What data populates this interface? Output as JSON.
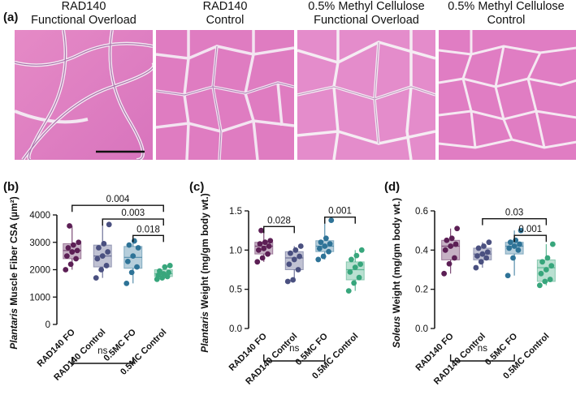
{
  "panels": {
    "a": "(a)",
    "b": "(b)",
    "c": "(c)",
    "d": "(d)"
  },
  "histology": [
    {
      "title_line1": "RAD140",
      "title_line2": "Functional Overload",
      "scale_bar": true
    },
    {
      "title_line1": "RAD140",
      "title_line2": "Control",
      "scale_bar": false
    },
    {
      "title_line1": "0.5% Methyl Cellulose",
      "title_line2": "Functional Overload",
      "scale_bar": false
    },
    {
      "title_line1": "0.5% Methyl Cellulose",
      "title_line2": "Control",
      "scale_bar": false
    }
  ],
  "colors": {
    "RAD140 FO": "#5c1f55",
    "RAD140 Control": "#4a5080",
    "0.5MC FO": "#2e7397",
    "0.5MC Control": "#38a67c"
  },
  "chart_data": [
    {
      "type": "box",
      "panel": "b",
      "ylabel_italic": "Plantaris",
      "ylabel_rest": " Muscle Fiber CSA (µm²)",
      "categories": [
        "RAD140 FO",
        "RAD140 Control",
        "0.5MC FO",
        "0.5MC Control"
      ],
      "ylim": [
        0,
        4000
      ],
      "yticks": [
        0,
        1000,
        2000,
        3000,
        4000
      ],
      "boxes": [
        {
          "min": 2000,
          "q1": 2400,
          "median": 2700,
          "q3": 2950,
          "max": 3600
        },
        {
          "min": 1700,
          "q1": 2100,
          "median": 2500,
          "q3": 2900,
          "max": 3650
        },
        {
          "min": 1500,
          "q1": 2050,
          "median": 2450,
          "q3": 2850,
          "max": 3050
        },
        {
          "min": 1650,
          "q1": 1750,
          "median": 1850,
          "q3": 2000,
          "max": 2150
        }
      ],
      "points": [
        [
          2000,
          2200,
          2400,
          2500,
          2650,
          2700,
          2800,
          2900,
          3000,
          3600
        ],
        [
          1700,
          2000,
          2150,
          2400,
          2500,
          2650,
          2800,
          2950,
          3650
        ],
        [
          1500,
          1900,
          2100,
          2300,
          2500,
          2800,
          2900,
          3050
        ],
        [
          1650,
          1700,
          1750,
          1800,
          1850,
          1900,
          1950,
          2100,
          2150
        ]
      ],
      "brackets": [
        {
          "from": 0,
          "to": 3,
          "label": "0.004",
          "y": 4350
        },
        {
          "from": 1,
          "to": 3,
          "label": "0.003",
          "y": 3850
        },
        {
          "from": 2,
          "to": 3,
          "label": "0.018",
          "y": 3250
        },
        {
          "from": 0,
          "to": 2,
          "label": "ns",
          "y": -100
        }
      ]
    },
    {
      "type": "box",
      "panel": "c",
      "ylabel_italic": "Plantaris",
      "ylabel_rest": " Weight (mg/gm body wt.)",
      "categories": [
        "RAD140 FO",
        "RAD140 Control",
        "0.5MC FO",
        "0.5MC Control"
      ],
      "ylim": [
        0,
        1.5
      ],
      "yticks": [
        0.0,
        0.5,
        1.0,
        1.5
      ],
      "boxes": [
        {
          "min": 0.85,
          "q1": 0.95,
          "median": 1.05,
          "q3": 1.1,
          "max": 1.25
        },
        {
          "min": 0.6,
          "q1": 0.75,
          "median": 0.9,
          "q3": 0.98,
          "max": 1.05
        },
        {
          "min": 0.88,
          "q1": 0.98,
          "median": 1.05,
          "q3": 1.12,
          "max": 1.38
        },
        {
          "min": 0.48,
          "q1": 0.62,
          "median": 0.75,
          "q3": 0.85,
          "max": 1.0
        }
      ],
      "points": [
        [
          0.85,
          0.9,
          0.95,
          1.0,
          1.02,
          1.05,
          1.08,
          1.1,
          1.12,
          1.25
        ],
        [
          0.6,
          0.62,
          0.75,
          0.82,
          0.88,
          0.92,
          0.96,
          1.0,
          1.05
        ],
        [
          0.88,
          0.92,
          0.98,
          1.02,
          1.05,
          1.08,
          1.1,
          1.15,
          1.38
        ],
        [
          0.48,
          0.58,
          0.65,
          0.72,
          0.78,
          0.82,
          0.88,
          0.93,
          1.0
        ]
      ],
      "brackets": [
        {
          "from": 0,
          "to": 1,
          "label": "0.028",
          "y": 1.3
        },
        {
          "from": 2,
          "to": 3,
          "label": "0.001",
          "y": 1.42
        },
        {
          "from": 0,
          "to": 2,
          "label": "ns",
          "y": -0.04
        }
      ]
    },
    {
      "type": "box",
      "panel": "d",
      "ylabel_italic": "Soleus",
      "ylabel_rest": " Weight (mg/gm body wt.)",
      "categories": [
        "RAD140 FO",
        "RAD140 Control",
        "0.5MC FO",
        "0.5MC Control"
      ],
      "ylim": [
        0,
        0.6
      ],
      "yticks": [
        0.0,
        0.2,
        0.4,
        0.6
      ],
      "boxes": [
        {
          "min": 0.28,
          "q1": 0.35,
          "median": 0.42,
          "q3": 0.45,
          "max": 0.51
        },
        {
          "min": 0.31,
          "q1": 0.35,
          "median": 0.38,
          "q3": 0.41,
          "max": 0.44
        },
        {
          "min": 0.27,
          "q1": 0.38,
          "median": 0.42,
          "q3": 0.44,
          "max": 0.5
        },
        {
          "min": 0.22,
          "q1": 0.24,
          "median": 0.31,
          "q3": 0.35,
          "max": 0.43
        }
      ],
      "points": [
        [
          0.28,
          0.33,
          0.36,
          0.4,
          0.42,
          0.43,
          0.45,
          0.46,
          0.51
        ],
        [
          0.31,
          0.34,
          0.36,
          0.37,
          0.38,
          0.39,
          0.41,
          0.42,
          0.44
        ],
        [
          0.27,
          0.36,
          0.4,
          0.41,
          0.42,
          0.43,
          0.44,
          0.45,
          0.5
        ],
        [
          0.22,
          0.24,
          0.25,
          0.28,
          0.3,
          0.32,
          0.34,
          0.36,
          0.43
        ]
      ],
      "brackets": [
        {
          "from": 1,
          "to": 3,
          "label": "0.03",
          "y": 0.56
        },
        {
          "from": 2,
          "to": 3,
          "label": "0.001",
          "y": 0.475
        },
        {
          "from": 0,
          "to": 2,
          "label": "ns",
          "y": -0.02
        }
      ]
    }
  ]
}
